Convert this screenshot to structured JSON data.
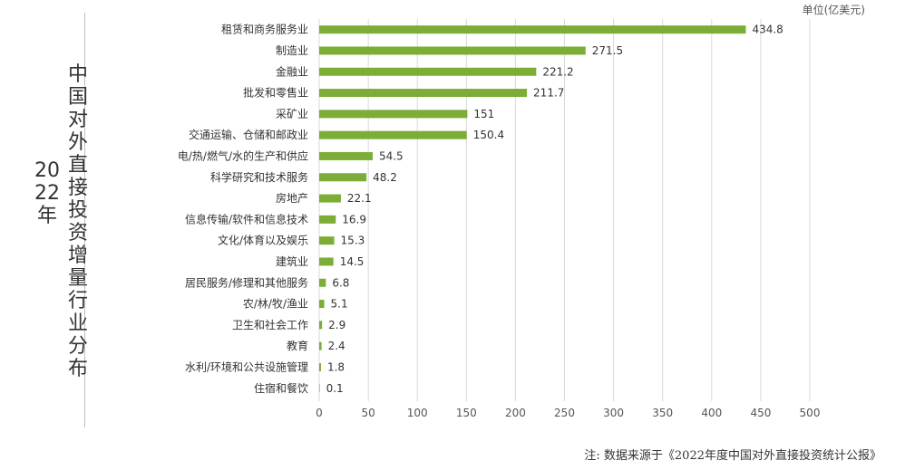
{
  "page": {
    "year_title": "2022年",
    "main_title": "中国对外直接投资增量行业分布",
    "unit_label": "单位(亿美元)",
    "footnote": "注: 数据来源于《2022年度中国对外直接投资统计公报》"
  },
  "chart_data": {
    "type": "bar",
    "orientation": "horizontal",
    "title": "中国对外直接投资增量行业分布",
    "subtitle": "2022年",
    "unit": "单位(亿美元)",
    "categories": [
      "租赁和商务服务业",
      "制造业",
      "金融业",
      "批发和零售业",
      "采矿业",
      "交通运输、仓储和邮政业",
      "电/热/燃气/水的生产和供应",
      "科学研究和技术服务",
      "房地产",
      "信息传输/软件和信息技术",
      "文化/体育以及娱乐",
      "建筑业",
      "居民服务/修理和其他服务",
      "农/林/牧/渔业",
      "卫生和社会工作",
      "教育",
      "水利/环境和公共设施管理",
      "住宿和餐饮"
    ],
    "values": [
      434.8,
      271.5,
      221.2,
      211.7,
      151,
      150.4,
      54.5,
      48.2,
      22.1,
      16.9,
      15.3,
      14.5,
      6.8,
      5.1,
      2.9,
      2.4,
      1.8,
      0.1
    ],
    "xlim": [
      0,
      500
    ],
    "x_ticks": [
      "0",
      "50",
      "100",
      "150",
      "200",
      "250",
      "300",
      "350",
      "400",
      "450",
      "500"
    ],
    "grid": true,
    "bar_color": "#7cad36",
    "grid_color": "#d9d9d9"
  }
}
